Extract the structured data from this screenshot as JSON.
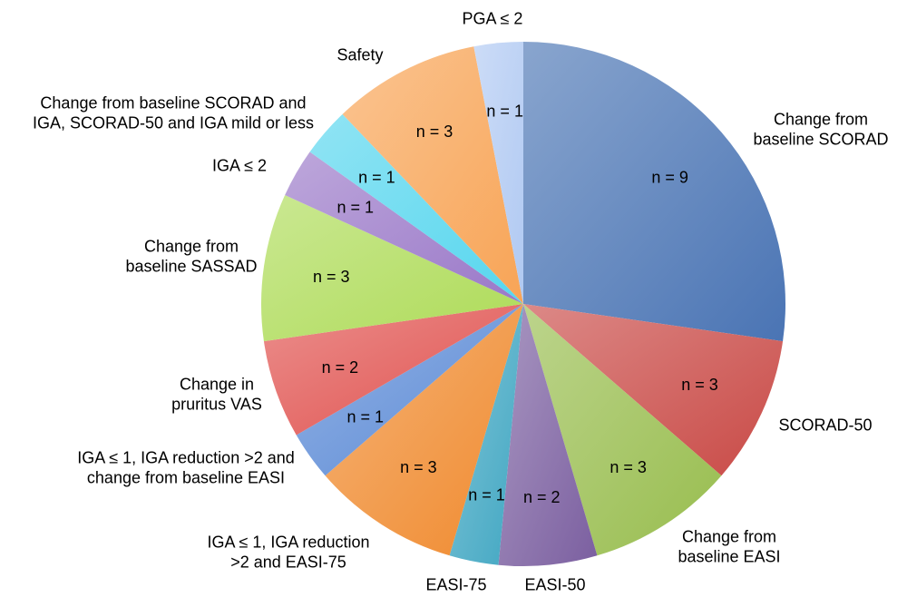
{
  "chart_data": {
    "type": "pie",
    "title": "",
    "start_angle_deg": 0,
    "direction": "clockwise",
    "slices": [
      {
        "label": "Change from baseline SCORAD",
        "label_lines": [
          "Change from",
          "baseline SCORAD"
        ],
        "value": 9,
        "value_label": "n = 9",
        "color": "#4a74b4"
      },
      {
        "label": "SCORAD-50",
        "label_lines": [
          "SCORAD-50"
        ],
        "value": 3,
        "value_label": "n = 3",
        "color": "#c94a46"
      },
      {
        "label": "Change from baseline EASI",
        "label_lines": [
          "Change from",
          "baseline EASI"
        ],
        "value": 3,
        "value_label": "n = 3",
        "color": "#98bd4e"
      },
      {
        "label": "EASI-50",
        "label_lines": [
          "EASI-50"
        ],
        "value": 2,
        "value_label": "n = 2",
        "color": "#7b5fa0"
      },
      {
        "label": "EASI-75",
        "label_lines": [
          "EASI-75"
        ],
        "value": 1,
        "value_label": "n = 1",
        "color": "#3fa6c2"
      },
      {
        "label": "IGA ≤ 1, IGA reduction >2 and EASI-75",
        "label_lines": [
          "IGA ≤ 1, IGA reduction",
          ">2 and EASI-75"
        ],
        "value": 3,
        "value_label": "n = 3",
        "color": "#f08a2e"
      },
      {
        "label": "IGA ≤ 1, IGA reduction >2 and change from baseline EASI",
        "label_lines": [
          "IGA ≤ 1, IGA reduction >2 and",
          "change from baseline EASI"
        ],
        "value": 1,
        "value_label": "n = 1",
        "color": "#5b8ad6"
      },
      {
        "label": "Change in pruritus VAS",
        "label_lines": [
          "Change in",
          "pruritus VAS"
        ],
        "value": 2,
        "value_label": "n = 2",
        "color": "#e0514e"
      },
      {
        "label": "Change from baseline SASSAD",
        "label_lines": [
          "Change from",
          "baseline SASSAD"
        ],
        "value": 3,
        "value_label": "n = 3",
        "color": "#aedb58"
      },
      {
        "label": "IGA ≤ 2",
        "label_lines": [
          "IGA ≤ 2"
        ],
        "value": 1,
        "value_label": "n = 1",
        "color": "#9a78c8"
      },
      {
        "label": "Change from baseline SCORAD and IGA, SCORAD-50 and IGA mild or less",
        "label_lines": [
          "Change from baseline SCORAD and",
          "IGA, SCORAD-50 and IGA mild or less"
        ],
        "value": 1,
        "value_label": "n = 1",
        "color": "#56d6ee"
      },
      {
        "label": "Safety",
        "label_lines": [
          "Safety"
        ],
        "value": 3,
        "value_label": "n = 3",
        "color": "#f8a456"
      },
      {
        "label": "PGA ≤ 2",
        "label_lines": [
          "PGA ≤ 2"
        ],
        "value": 1,
        "value_label": "n = 1",
        "color": "#b0c9f2"
      }
    ]
  }
}
